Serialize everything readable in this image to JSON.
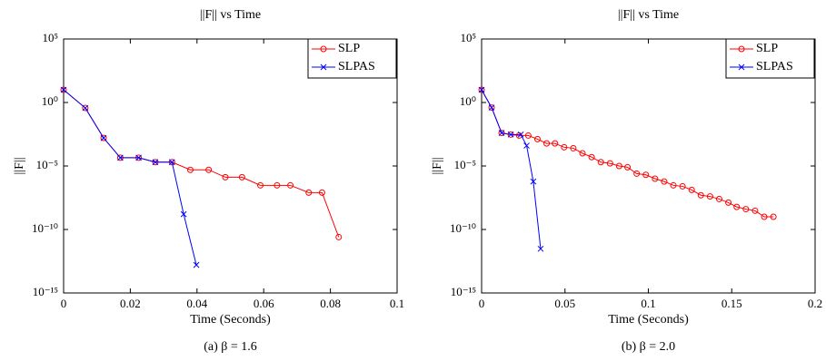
{
  "chart_data": [
    {
      "type": "line",
      "title": "||F|| vs Time",
      "xlabel": "Time (Seconds)",
      "ylabel": "||F||",
      "caption": "(a) β = 1.6",
      "log_y": true,
      "legend": "upper right",
      "xlim": [
        0,
        0.1
      ],
      "xticks": [
        0,
        0.02,
        0.04,
        0.06,
        0.08,
        0.1
      ],
      "ylim": [
        1e-15,
        100000
      ],
      "yticks": [
        {
          "value": 1e-15,
          "label": "10⁻¹⁵"
        },
        {
          "value": 1e-10,
          "label": "10⁻¹⁰"
        },
        {
          "value": 1e-05,
          "label": "10⁻⁵"
        },
        {
          "value": 1,
          "label": "10⁰"
        },
        {
          "value": 100000,
          "label": "10⁵"
        }
      ],
      "series": [
        {
          "name": "SLP",
          "color": "#ff0000",
          "marker": "circle",
          "x": [
            0,
            0.0065,
            0.012,
            0.017,
            0.0225,
            0.0275,
            0.0325,
            0.038,
            0.0435,
            0.0485,
            0.0535,
            0.059,
            0.064,
            0.068,
            0.0735,
            0.0775,
            0.0825
          ],
          "values": [
            10,
            0.37,
            0.0016,
            4.5e-05,
            4.5e-05,
            2e-05,
            2e-05,
            5e-06,
            5e-06,
            1.3e-06,
            1.3e-06,
            3e-07,
            3e-07,
            3e-07,
            8e-08,
            8e-08,
            2.5e-11
          ]
        },
        {
          "name": "SLPAS",
          "color": "#0000ff",
          "marker": "x",
          "x": [
            0,
            0.0065,
            0.012,
            0.017,
            0.0225,
            0.0275,
            0.0325,
            0.036,
            0.0398
          ],
          "values": [
            10,
            0.37,
            0.0016,
            4.5e-05,
            4.5e-05,
            2e-05,
            2e-05,
            1.6e-09,
            1.6e-13
          ]
        }
      ]
    },
    {
      "type": "line",
      "title": "||F|| vs Time",
      "xlabel": "Time (Seconds)",
      "ylabel": "||F||",
      "caption": "(b) β = 2.0",
      "log_y": true,
      "legend": "upper right",
      "xlim": [
        0,
        0.2
      ],
      "xticks": [
        0,
        0.05,
        0.1,
        0.15,
        0.2
      ],
      "ylim": [
        1e-15,
        100000
      ],
      "yticks": [
        {
          "value": 1e-15,
          "label": "10⁻¹⁵"
        },
        {
          "value": 1e-10,
          "label": "10⁻¹⁰"
        },
        {
          "value": 1e-05,
          "label": "10⁻⁵"
        },
        {
          "value": 1,
          "label": "10⁰"
        },
        {
          "value": 100000,
          "label": "10⁵"
        }
      ],
      "series": [
        {
          "name": "SLP",
          "color": "#ff0000",
          "marker": "circle",
          "x": [
            0,
            0.006,
            0.012,
            0.0175,
            0.0225,
            0.028,
            0.0335,
            0.039,
            0.044,
            0.0495,
            0.055,
            0.0605,
            0.066,
            0.0715,
            0.077,
            0.0825,
            0.0875,
            0.093,
            0.0985,
            0.104,
            0.1095,
            0.115,
            0.1205,
            0.126,
            0.1315,
            0.137,
            0.1425,
            0.148,
            0.153,
            0.1585,
            0.164,
            0.1695,
            0.175
          ],
          "values": [
            10,
            0.4,
            0.004,
            0.003,
            0.0025,
            0.0025,
            0.0013,
            0.0006,
            0.0006,
            0.0003,
            0.00025,
            0.0001,
            5e-05,
            2e-05,
            1.6e-05,
            1e-05,
            8e-06,
            2.5e-06,
            2e-06,
            1e-06,
            6e-07,
            3e-07,
            2.5e-07,
            1.3e-07,
            5e-08,
            4e-08,
            2.5e-08,
            1.3e-08,
            6e-09,
            4e-09,
            3e-09,
            1e-09,
            1e-09
          ]
        },
        {
          "name": "SLPAS",
          "color": "#0000ff",
          "marker": "x",
          "x": [
            0,
            0.006,
            0.012,
            0.0175,
            0.0235,
            0.027,
            0.031,
            0.0354
          ],
          "values": [
            10,
            0.4,
            0.004,
            0.003,
            0.003,
            0.0004,
            6e-07,
            3e-12
          ]
        }
      ]
    }
  ]
}
